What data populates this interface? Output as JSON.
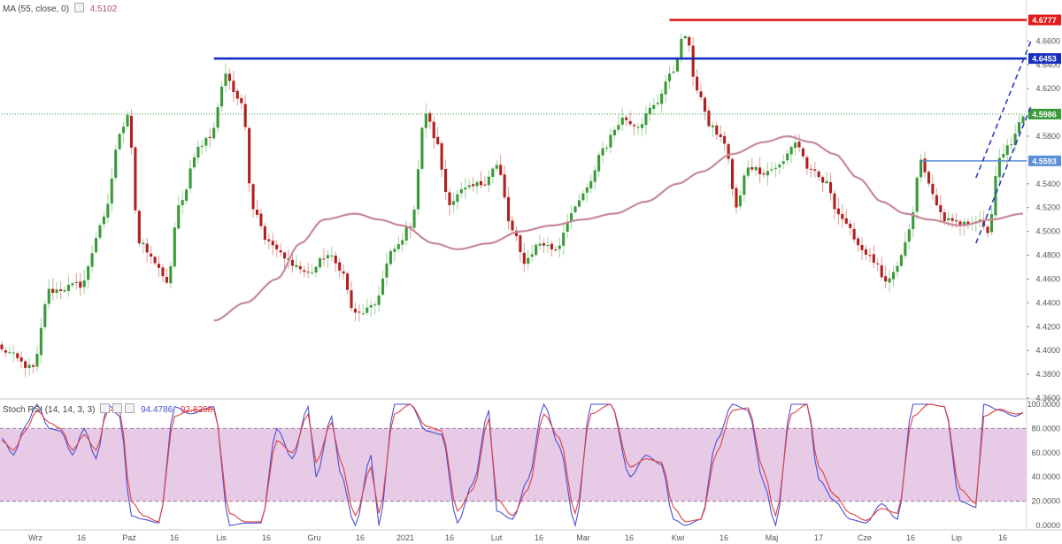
{
  "legend": {
    "ma_label": "MA (55, close, 0)",
    "ma_value": "4.5102",
    "rsi_label": "Stoch RSI (14, 14, 3, 3)",
    "rsi_k_value": "94.4786",
    "rsi_d_value": "92.8258"
  },
  "colors": {
    "up": "#3a9a3a",
    "down": "#b21f1f",
    "ma": "#c98a9a",
    "red_level": "#e31a1a",
    "blue_level": "#1a2fbf",
    "light_blue_level": "#5a8fd6",
    "green_level": "#3a9a3a",
    "channel": "#2a3fc0",
    "rsi_k": "#4a50d6",
    "rsi_d": "#e04040",
    "rsi_band": "#e3c4e3"
  },
  "chart_data": [
    {
      "type": "candlestick",
      "title": "",
      "ylim": [
        4.36,
        4.69
      ],
      "y_ticks": [
        "4.6600",
        "4.6400",
        "4.6200",
        "4.5800",
        "4.5400",
        "4.5200",
        "4.5000",
        "4.4800",
        "4.4600",
        "4.4400",
        "4.4200",
        "4.4000",
        "4.3800",
        "4.3600"
      ],
      "x_ticks": [
        "Wrz",
        "16",
        "Paź",
        "16",
        "Lis",
        "16",
        "Gru",
        "16",
        "2021",
        "16",
        "Lut",
        "16",
        "Mar",
        "16",
        "Kwi",
        "16",
        "Maj",
        "17",
        "Cze",
        "16",
        "Lip",
        "16"
      ],
      "grid": false,
      "anchors": [
        [
          0,
          4.4
        ],
        [
          8,
          4.385
        ],
        [
          12,
          4.45
        ],
        [
          20,
          4.455
        ],
        [
          26,
          4.51
        ],
        [
          30,
          4.58
        ],
        [
          32,
          4.6
        ],
        [
          35,
          4.49
        ],
        [
          39,
          4.475
        ],
        [
          42,
          4.455
        ],
        [
          45,
          4.52
        ],
        [
          50,
          4.57
        ],
        [
          53,
          4.58
        ],
        [
          57,
          4.63
        ],
        [
          61,
          4.61
        ],
        [
          64,
          4.52
        ],
        [
          68,
          4.49
        ],
        [
          73,
          4.475
        ],
        [
          78,
          4.465
        ],
        [
          83,
          4.48
        ],
        [
          86,
          4.47
        ],
        [
          90,
          4.43
        ],
        [
          94,
          4.435
        ],
        [
          100,
          4.485
        ],
        [
          104,
          4.505
        ],
        [
          108,
          4.6
        ],
        [
          110,
          4.58
        ],
        [
          114,
          4.525
        ],
        [
          118,
          4.535
        ],
        [
          122,
          4.54
        ],
        [
          126,
          4.555
        ],
        [
          130,
          4.5
        ],
        [
          133,
          4.475
        ],
        [
          137,
          4.49
        ],
        [
          141,
          4.485
        ],
        [
          145,
          4.515
        ],
        [
          149,
          4.535
        ],
        [
          153,
          4.57
        ],
        [
          158,
          4.595
        ],
        [
          162,
          4.59
        ],
        [
          166,
          4.605
        ],
        [
          170,
          4.63
        ],
        [
          174,
          4.665
        ],
        [
          177,
          4.62
        ],
        [
          180,
          4.59
        ],
        [
          184,
          4.575
        ],
        [
          187,
          4.52
        ],
        [
          190,
          4.555
        ],
        [
          194,
          4.55
        ],
        [
          198,
          4.555
        ],
        [
          202,
          4.575
        ],
        [
          206,
          4.55
        ],
        [
          210,
          4.54
        ],
        [
          213,
          4.515
        ],
        [
          216,
          4.5
        ],
        [
          219,
          4.485
        ],
        [
          222,
          4.475
        ],
        [
          225,
          4.455
        ],
        [
          228,
          4.47
        ],
        [
          231,
          4.5
        ],
        [
          234,
          4.56
        ],
        [
          237,
          4.53
        ],
        [
          240,
          4.51
        ],
        [
          244,
          4.505
        ],
        [
          248,
          4.51
        ],
        [
          251,
          4.5
        ],
        [
          254,
          4.56
        ],
        [
          257,
          4.575
        ],
        [
          260,
          4.595
        ]
      ],
      "candle_count": 261,
      "moving_average": {
        "name": "MA (55, close, 0)",
        "anchors": [
          [
            54,
            4.425
          ],
          [
            62,
            4.44
          ],
          [
            70,
            4.46
          ],
          [
            76,
            4.49
          ],
          [
            82,
            4.51
          ],
          [
            90,
            4.515
          ],
          [
            96,
            4.51
          ],
          [
            102,
            4.505
          ],
          [
            110,
            4.49
          ],
          [
            116,
            4.485
          ],
          [
            124,
            4.49
          ],
          [
            132,
            4.5
          ],
          [
            140,
            4.505
          ],
          [
            148,
            4.51
          ],
          [
            156,
            4.515
          ],
          [
            164,
            4.525
          ],
          [
            172,
            4.54
          ],
          [
            178,
            4.55
          ],
          [
            186,
            4.565
          ],
          [
            194,
            4.575
          ],
          [
            200,
            4.58
          ],
          [
            206,
            4.575
          ],
          [
            212,
            4.565
          ],
          [
            218,
            4.545
          ],
          [
            224,
            4.525
          ],
          [
            230,
            4.515
          ],
          [
            236,
            4.51
          ],
          [
            244,
            4.505
          ],
          [
            252,
            4.51
          ],
          [
            260,
            4.515
          ]
        ]
      },
      "levels": [
        {
          "value": 4.6777,
          "label": "4.6777",
          "x_from": 170,
          "color_key": "red_level"
        },
        {
          "value": 4.6453,
          "label": "4.6453",
          "x_from": 54,
          "color_key": "blue_level"
        },
        {
          "value": 4.5986,
          "label": "4.5986",
          "x_from": 0,
          "color_key": "green_level",
          "style": "dotted"
        },
        {
          "value": 4.5593,
          "label": "4.5593",
          "x_from": 234,
          "color_key": "light_blue_level"
        }
      ],
      "channel_lines": [
        {
          "from": [
            248,
            4.545
          ],
          "to": [
            262,
            4.66
          ]
        },
        {
          "from": [
            248,
            4.49
          ],
          "to": [
            262,
            4.605
          ]
        }
      ]
    },
    {
      "type": "line",
      "title": "",
      "name": "Stoch RSI (14, 14, 3, 3)",
      "ylim": [
        0,
        100
      ],
      "y_ticks": [
        "100.0000",
        "80.0000",
        "60.0000",
        "40.0000",
        "20.0000",
        "0.0000"
      ],
      "band": [
        20,
        80
      ],
      "series": [
        {
          "name": "K",
          "color_key": "rsi_k",
          "anchors": [
            [
              0,
              72
            ],
            [
              3,
              58
            ],
            [
              6,
              82
            ],
            [
              9,
              100
            ],
            [
              12,
              80
            ],
            [
              15,
              78
            ],
            [
              18,
              58
            ],
            [
              21,
              80
            ],
            [
              24,
              55
            ],
            [
              27,
              100
            ],
            [
              30,
              90
            ],
            [
              33,
              8
            ],
            [
              36,
              5
            ],
            [
              40,
              2
            ],
            [
              44,
              98
            ],
            [
              48,
              92
            ],
            [
              54,
              98
            ],
            [
              58,
              0
            ],
            [
              62,
              2
            ],
            [
              66,
              2
            ],
            [
              70,
              80
            ],
            [
              74,
              55
            ],
            [
              78,
              98
            ],
            [
              80,
              40
            ],
            [
              84,
              90
            ],
            [
              86,
              45
            ],
            [
              90,
              0
            ],
            [
              94,
              58
            ],
            [
              96,
              0
            ],
            [
              100,
              100
            ],
            [
              104,
              100
            ],
            [
              108,
              78
            ],
            [
              112,
              75
            ],
            [
              116,
              2
            ],
            [
              120,
              35
            ],
            [
              124,
              95
            ],
            [
              126,
              12
            ],
            [
              130,
              5
            ],
            [
              134,
              38
            ],
            [
              138,
              100
            ],
            [
              142,
              65
            ],
            [
              146,
              0
            ],
            [
              150,
              100
            ],
            [
              155,
              100
            ],
            [
              160,
              40
            ],
            [
              164,
              58
            ],
            [
              168,
              50
            ],
            [
              171,
              5
            ],
            [
              174,
              0
            ],
            [
              178,
              5
            ],
            [
              182,
              70
            ],
            [
              186,
              100
            ],
            [
              190,
              95
            ],
            [
              194,
              35
            ],
            [
              197,
              0
            ],
            [
              201,
              100
            ],
            [
              205,
              100
            ],
            [
              208,
              38
            ],
            [
              212,
              20
            ],
            [
              216,
              5
            ],
            [
              220,
              2
            ],
            [
              224,
              18
            ],
            [
              228,
              5
            ],
            [
              232,
              100
            ],
            [
              236,
              100
            ],
            [
              240,
              98
            ],
            [
              244,
              20
            ],
            [
              248,
              15
            ],
            [
              250,
              100
            ],
            [
              254,
              95
            ],
            [
              258,
              90
            ],
            [
              261,
              94.4786
            ]
          ]
        },
        {
          "name": "D",
          "color_key": "rsi_d",
          "anchors": [
            [
              0,
              70
            ],
            [
              3,
              62
            ],
            [
              6,
              78
            ],
            [
              9,
              95
            ],
            [
              12,
              85
            ],
            [
              15,
              80
            ],
            [
              18,
              62
            ],
            [
              21,
              75
            ],
            [
              24,
              62
            ],
            [
              27,
              95
            ],
            [
              30,
              95
            ],
            [
              33,
              20
            ],
            [
              36,
              8
            ],
            [
              40,
              3
            ],
            [
              44,
              90
            ],
            [
              48,
              95
            ],
            [
              54,
              96
            ],
            [
              58,
              10
            ],
            [
              62,
              3
            ],
            [
              66,
              3
            ],
            [
              70,
              70
            ],
            [
              74,
              60
            ],
            [
              78,
              92
            ],
            [
              80,
              52
            ],
            [
              84,
              85
            ],
            [
              86,
              55
            ],
            [
              90,
              8
            ],
            [
              94,
              48
            ],
            [
              96,
              10
            ],
            [
              100,
              92
            ],
            [
              104,
              100
            ],
            [
              108,
              82
            ],
            [
              112,
              78
            ],
            [
              116,
              12
            ],
            [
              120,
              30
            ],
            [
              124,
              88
            ],
            [
              126,
              22
            ],
            [
              130,
              8
            ],
            [
              134,
              30
            ],
            [
              138,
              92
            ],
            [
              142,
              72
            ],
            [
              146,
              10
            ],
            [
              150,
              92
            ],
            [
              155,
              100
            ],
            [
              160,
              48
            ],
            [
              164,
              55
            ],
            [
              168,
              52
            ],
            [
              171,
              15
            ],
            [
              174,
              3
            ],
            [
              178,
              5
            ],
            [
              182,
              60
            ],
            [
              186,
              95
            ],
            [
              190,
              97
            ],
            [
              194,
              45
            ],
            [
              197,
              8
            ],
            [
              201,
              92
            ],
            [
              205,
              100
            ],
            [
              208,
              48
            ],
            [
              212,
              25
            ],
            [
              216,
              10
            ],
            [
              220,
              4
            ],
            [
              224,
              14
            ],
            [
              228,
              10
            ],
            [
              232,
              90
            ],
            [
              236,
              100
            ],
            [
              240,
              98
            ],
            [
              244,
              30
            ],
            [
              248,
              18
            ],
            [
              250,
              90
            ],
            [
              254,
              96
            ],
            [
              258,
              92
            ],
            [
              261,
              92.8258
            ]
          ]
        }
      ]
    }
  ]
}
